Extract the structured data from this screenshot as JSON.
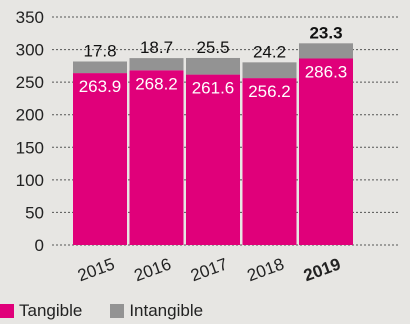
{
  "chart_data": {
    "type": "bar",
    "stacked": true,
    "categories": [
      "2015",
      "2016",
      "2017",
      "2018",
      "2019"
    ],
    "highlight_category": "2019",
    "series": [
      {
        "name": "Tangible",
        "color": "#e0007a",
        "values": [
          263.9,
          268.2,
          261.6,
          256.2,
          286.3
        ]
      },
      {
        "name": "Intangible",
        "color": "#939393",
        "values": [
          17.8,
          18.7,
          25.5,
          24.2,
          23.3
        ]
      }
    ],
    "y_ticks": [
      "0",
      "50",
      "100",
      "150",
      "200",
      "250",
      "300",
      "350"
    ],
    "ylim": [
      0,
      350
    ],
    "grid": "dotted-horizontal",
    "legend": "bottom-left"
  }
}
